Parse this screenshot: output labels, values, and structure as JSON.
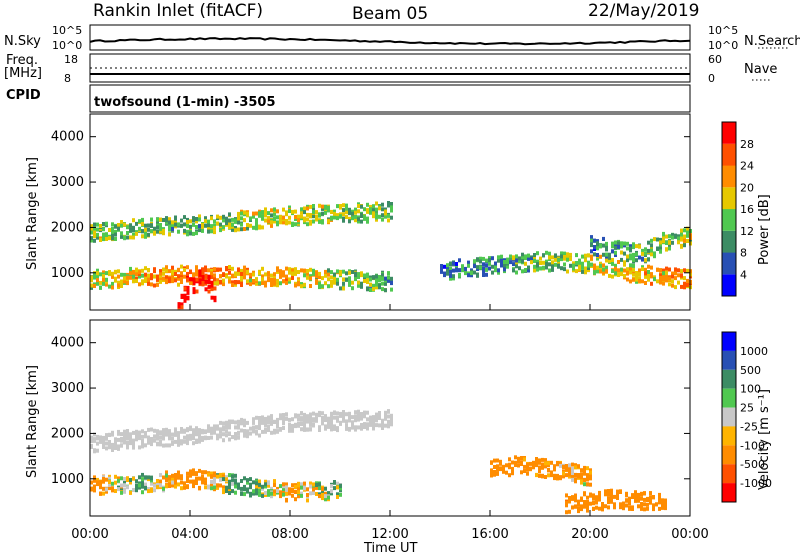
{
  "header": {
    "station": "Rankin Inlet (fitACF)",
    "beam": "Beam 05",
    "date": "22/May/2019"
  },
  "noise_panel": {
    "left_label": "N.Sky",
    "right_label": "N.Search",
    "ticks_left": [
      "10^5",
      "10^0"
    ],
    "ticks_right": [
      "10^5",
      "10^0"
    ]
  },
  "freq_panel": {
    "left_label_line1": "Freq.",
    "left_label_line2": "[MHz]",
    "right_label": "Nave",
    "ticks_left": [
      "18",
      "8"
    ],
    "ticks_right": [
      "60",
      "0"
    ]
  },
  "cpid_panel": {
    "label": "CPID",
    "text": "twofsound (1-min) -3505"
  },
  "colors": {
    "power_scale": [
      "#0000ff",
      "#2850b4",
      "#3c8c64",
      "#50c850",
      "#e6c800",
      "#ff8c00",
      "#ff5000",
      "#ff0000"
    ],
    "velocity_scale": [
      "#ff0000",
      "#ff5000",
      "#ff8c00",
      "#ffb400",
      "#c8c8c8",
      "#50c850",
      "#3c8c64",
      "#2850b4",
      "#0000ff"
    ],
    "ground_scatter": "#c8c8c8"
  },
  "chart_data": [
    {
      "type": "heatmap",
      "panel": "power",
      "ylabel": "Slant Range [km]",
      "ylim": [
        180,
        4500
      ],
      "yticks": [
        "1000",
        "2000",
        "3000",
        "4000"
      ],
      "colorbar_label": "Power [dB]",
      "colorbar_ticks": [
        "4",
        "8",
        "12",
        "16",
        "20",
        "24",
        "28"
      ],
      "colorbar_range": [
        0,
        30
      ],
      "series": [
        {
          "x": [
            0,
            4,
            8,
            12
          ],
          "y": [
            1900,
            2050,
            2250,
            2350
          ],
          "value": [
            14,
            12,
            16,
            12
          ]
        },
        {
          "x": [
            0,
            4,
            8,
            12
          ],
          "y": [
            850,
            950,
            900,
            800
          ],
          "value": [
            16,
            22,
            18,
            10
          ]
        },
        {
          "x": [
            3.5,
            4,
            4.5,
            5
          ],
          "y": [
            300,
            700,
            900,
            500
          ],
          "value": [
            30,
            30,
            28,
            30
          ]
        },
        {
          "x": [
            14,
            16,
            18,
            20,
            22,
            24
          ],
          "y": [
            1050,
            1150,
            1250,
            1200,
            950,
            850
          ],
          "value": [
            8,
            10,
            12,
            16,
            18,
            22
          ]
        },
        {
          "x": [
            20,
            21,
            22,
            23,
            24
          ],
          "y": [
            1600,
            1500,
            1400,
            1700,
            1800
          ],
          "value": [
            8,
            10,
            12,
            14,
            14
          ]
        }
      ]
    },
    {
      "type": "heatmap",
      "panel": "velocity",
      "ylabel": "Slant Range [km]",
      "xlabel": "Time UT",
      "ylim": [
        180,
        4500
      ],
      "yticks": [
        "1000",
        "2000",
        "3000",
        "4000"
      ],
      "xticks": [
        "00:00",
        "04:00",
        "08:00",
        "12:00",
        "16:00",
        "20:00",
        "00:00"
      ],
      "xlim": [
        0,
        24
      ],
      "colorbar_label": "Velocity [m s⁻¹]",
      "colorbar_ticks": [
        "1000",
        "500",
        "100",
        "25",
        "-25",
        "-100",
        "-500",
        "-1000"
      ],
      "series": [
        {
          "x": [
            0,
            4,
            8,
            12
          ],
          "y": [
            1800,
            1950,
            2250,
            2300
          ],
          "value": [
            0,
            0,
            0,
            0
          ]
        },
        {
          "x": [
            0,
            2,
            4,
            6,
            8,
            10
          ],
          "y": [
            850,
            900,
            1000,
            850,
            700,
            750
          ],
          "value": [
            -200,
            150,
            -300,
            200,
            -150,
            100
          ]
        },
        {
          "x": [
            16,
            17,
            18,
            19,
            20
          ],
          "y": [
            1200,
            1300,
            1250,
            1150,
            1050
          ],
          "value": [
            -300,
            -250,
            -200,
            -150,
            -100
          ]
        },
        {
          "x": [
            19,
            20,
            21,
            22,
            23
          ],
          "y": [
            450,
            500,
            550,
            500,
            500
          ],
          "value": [
            -400,
            -350,
            -300,
            -250,
            -350
          ]
        }
      ]
    }
  ]
}
